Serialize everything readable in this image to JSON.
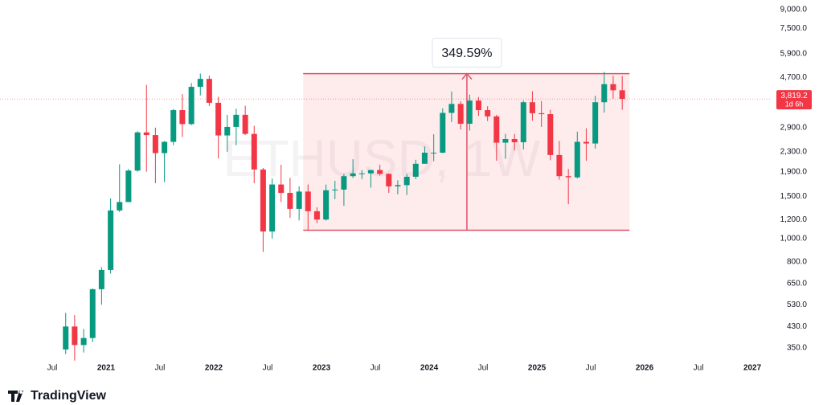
{
  "chart_data": {
    "type": "candlestick",
    "symbol": "ETHUSD, 1W",
    "brand": "TradingView",
    "log_scale": true,
    "up_color": "#089981",
    "down_color": "#f23645",
    "xlim": [
      2020.015,
      2027.104
    ],
    "ylim": [
      307,
      9870
    ],
    "xticks": [
      {
        "value": 2020.5,
        "label": "Jul"
      },
      2021,
      {
        "value": 2021.5,
        "label": "Jul"
      },
      2022,
      {
        "value": 2022.5,
        "label": "Jul"
      },
      2023,
      {
        "value": 2023.5,
        "label": "Jul"
      },
      2024,
      {
        "value": 2024.5,
        "label": "Jul"
      },
      2025,
      {
        "value": 2025.5,
        "label": "Jul"
      },
      2026,
      {
        "value": 2026.5,
        "label": "Jul"
      },
      2027
    ],
    "yticks": [
      {
        "value": 9000,
        "label": "9,000.0"
      },
      {
        "value": 7500,
        "label": "7,500.0"
      },
      {
        "value": 5900,
        "label": "5,900.0"
      },
      {
        "value": 4700,
        "label": "4,700.0"
      },
      {
        "value": 2900,
        "label": "2,900.0"
      },
      {
        "value": 2300,
        "label": "2,300.0"
      },
      {
        "value": 1900,
        "label": "1,900.0"
      },
      {
        "value": 1500,
        "label": "1,500.0"
      },
      {
        "value": 1200,
        "label": "1,200.0"
      },
      {
        "value": 1000,
        "label": "1,000.0"
      },
      {
        "value": 800,
        "label": "800.0"
      },
      {
        "value": 650,
        "label": "650.0"
      },
      {
        "value": 530,
        "label": "530.0"
      },
      {
        "value": 430,
        "label": "430.0"
      },
      {
        "value": 350,
        "label": "350.0"
      }
    ],
    "last_price": {
      "value": 3819.2,
      "label": "3,819.2"
    },
    "countdown": "1d 6h",
    "range": {
      "x0": 2022.83,
      "x1": 2025.86,
      "x_arrow": 2024.35,
      "low": 1083.2,
      "high": 4870,
      "label": "349.59%"
    },
    "x": [
      2020.625,
      2020.708,
      2020.792,
      2020.875,
      2020.958,
      2021.042,
      2021.125,
      2021.208,
      2021.292,
      2021.375,
      2021.458,
      2021.542,
      2021.625,
      2021.708,
      2021.792,
      2021.875,
      2021.958,
      2022.042,
      2022.125,
      2022.208,
      2022.292,
      2022.375,
      2022.458,
      2022.542,
      2022.625,
      2022.708,
      2022.792,
      2022.875,
      2022.958,
      2023.042,
      2023.125,
      2023.208,
      2023.292,
      2023.375,
      2023.458,
      2023.542,
      2023.625,
      2023.708,
      2023.792,
      2023.875,
      2023.958,
      2024.042,
      2024.125,
      2024.208,
      2024.292,
      2024.375,
      2024.458,
      2024.542,
      2024.625,
      2024.708,
      2024.792,
      2024.875,
      2024.958,
      2025.042,
      2025.125,
      2025.208,
      2025.292,
      2025.375,
      2025.458,
      2025.542,
      2025.625,
      2025.708,
      2025.792
    ],
    "open": [
      345,
      430,
      360,
      385,
      615,
      740,
      1310,
      1420,
      1920,
      2770,
      2700,
      2270,
      2530,
      3430,
      3000,
      4290,
      4630,
      3680,
      2690,
      2920,
      3280,
      2730,
      1940,
      1070,
      1680,
      1550,
      1330,
      1570,
      1300,
      1200,
      1590,
      1600,
      1820,
      1870,
      1870,
      1930,
      1860,
      1650,
      1670,
      1810,
      2050,
      2280,
      2280,
      3340,
      3640,
      3010,
      3760,
      3430,
      3230,
      2510,
      2600,
      2520,
      3700,
      3330,
      3300,
      2230,
      1820,
      1800,
      2530,
      2490,
      3700,
      4400,
      4150
    ],
    "high": [
      490,
      480,
      420,
      620,
      760,
      1470,
      2040,
      1950,
      2800,
      4370,
      2900,
      2550,
      3470,
      4000,
      4450,
      4870,
      4780,
      3900,
      3280,
      3480,
      3580,
      2950,
      1970,
      1780,
      2030,
      1790,
      1650,
      1680,
      1350,
      1680,
      1740,
      1860,
      2140,
      1930,
      1930,
      2030,
      1870,
      1750,
      1860,
      2130,
      2420,
      2720,
      3490,
      4100,
      3730,
      3980,
      3890,
      3560,
      3280,
      2730,
      2730,
      3760,
      4110,
      3740,
      3440,
      2550,
      1950,
      2790,
      2880,
      3940,
      4950,
      4770,
      4760
    ],
    "low": [
      330,
      310,
      335,
      370,
      530,
      715,
      1290,
      1420,
      1900,
      1900,
      1700,
      1720,
      2450,
      2650,
      2970,
      3950,
      3570,
      2160,
      2300,
      2450,
      2700,
      1700,
      880,
      1000,
      1420,
      1220,
      1190,
      1080,
      1160,
      1190,
      1460,
      1370,
      1790,
      1770,
      1630,
      1830,
      1550,
      1530,
      1520,
      1770,
      2050,
      2100,
      2270,
      3060,
      2850,
      2820,
      3240,
      3090,
      2110,
      2150,
      2330,
      2350,
      3100,
      2920,
      2120,
      1760,
      1390,
      1780,
      2110,
      2370,
      3350,
      3830,
      3440
    ],
    "close": [
      430,
      360,
      385,
      615,
      740,
      1310,
      1420,
      1920,
      2770,
      2700,
      2270,
      2530,
      3430,
      3000,
      4290,
      4630,
      3680,
      2690,
      2920,
      3280,
      2730,
      1940,
      1070,
      1680,
      1550,
      1330,
      1570,
      1300,
      1200,
      1590,
      1600,
      1820,
      1870,
      1870,
      1930,
      1860,
      1650,
      1670,
      1810,
      2050,
      2280,
      2280,
      3340,
      3640,
      3010,
      3760,
      3430,
      3230,
      2510,
      2600,
      2520,
      3700,
      3330,
      3300,
      2230,
      1820,
      1800,
      2530,
      2490,
      3700,
      4400,
      4150,
      3819.2
    ]
  }
}
